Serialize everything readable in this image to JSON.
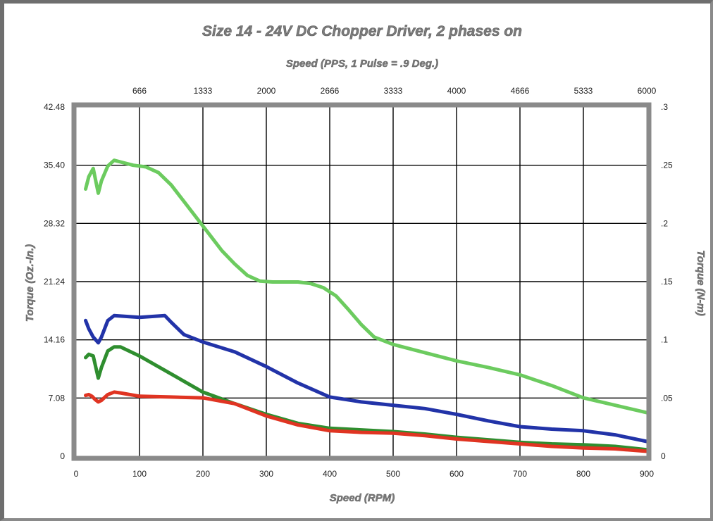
{
  "chart_data": {
    "type": "line",
    "title": "Size 14 - 24V DC Chopper Driver, 2 phases on",
    "top_axis_label": "Speed (PPS, 1 Pulse = .9 Deg.)",
    "xlabel": "Speed (RPM)",
    "ylabel_left": "Torque (Oz.-In.)",
    "ylabel_right": "Torque (N-m)",
    "xlim": [
      0,
      900
    ],
    "ylim_left": [
      0,
      42.48
    ],
    "ylim_right": [
      0,
      0.3
    ],
    "x_ticks": [
      "0",
      "100",
      "200",
      "300",
      "400",
      "500",
      "600",
      "700",
      "800",
      "900"
    ],
    "top_ticks": [
      "666",
      "1333",
      "2000",
      "2666",
      "3333",
      "4000",
      "4666",
      "5333",
      "6000"
    ],
    "left_ticks": [
      "0",
      "7.08",
      "14.16",
      "21.24",
      "28.32",
      "35.40",
      "42.48"
    ],
    "right_ticks": [
      "0",
      ".05",
      ".1",
      ".15",
      ".2",
      ".25",
      ".3"
    ],
    "grid": true,
    "colors": {
      "light_green": "#6ccb5f",
      "blue": "#2233a8",
      "dark_green": "#2f8e2f",
      "red": "#e03422",
      "grid": "#000000",
      "plot_border": "#8a8a8a",
      "text_gray": "#7c7c7c"
    },
    "series": [
      {
        "color": "#6ccb5f",
        "x": [
          15,
          20,
          27,
          35,
          40,
          50,
          60,
          70,
          90,
          110,
          130,
          150,
          170,
          190,
          210,
          230,
          250,
          270,
          290,
          310,
          330,
          350,
          370,
          390,
          410,
          430,
          450,
          470,
          500,
          550,
          600,
          650,
          700,
          750,
          800,
          850,
          900
        ],
        "y": [
          32.5,
          34.0,
          35.0,
          32.0,
          33.5,
          35.3,
          36.0,
          35.8,
          35.4,
          35.2,
          34.5,
          33.0,
          31.0,
          29.0,
          27.0,
          25.0,
          23.4,
          22.0,
          21.3,
          21.2,
          21.2,
          21.2,
          21.0,
          20.5,
          19.5,
          17.8,
          16.0,
          14.5,
          13.6,
          12.6,
          11.6,
          10.8,
          9.9,
          8.6,
          7.1,
          6.2,
          5.3
        ]
      },
      {
        "color": "#2233a8",
        "x": [
          15,
          20,
          27,
          35,
          40,
          50,
          60,
          80,
          100,
          120,
          140,
          150,
          170,
          200,
          250,
          300,
          350,
          400,
          450,
          500,
          550,
          600,
          650,
          700,
          750,
          800,
          850,
          900
        ],
        "y": [
          16.5,
          15.5,
          14.5,
          13.8,
          14.5,
          16.5,
          17.1,
          17.0,
          16.9,
          17.0,
          17.1,
          16.3,
          14.8,
          13.9,
          12.7,
          10.9,
          8.9,
          7.2,
          6.6,
          6.2,
          5.8,
          5.1,
          4.3,
          3.6,
          3.3,
          3.1,
          2.6,
          1.8
        ]
      },
      {
        "color": "#2f8e2f",
        "x": [
          15,
          20,
          27,
          35,
          40,
          50,
          60,
          70,
          100,
          150,
          200,
          250,
          300,
          350,
          400,
          450,
          500,
          550,
          600,
          650,
          700,
          750,
          800,
          850,
          900
        ],
        "y": [
          12.0,
          12.4,
          12.2,
          9.5,
          10.8,
          12.8,
          13.3,
          13.3,
          12.2,
          10.0,
          7.8,
          6.4,
          5.1,
          4.0,
          3.4,
          3.2,
          3.0,
          2.7,
          2.3,
          2.0,
          1.7,
          1.5,
          1.4,
          1.2,
          0.8
        ]
      },
      {
        "color": "#e03422",
        "x": [
          15,
          20,
          25,
          30,
          35,
          40,
          50,
          60,
          70,
          100,
          150,
          200,
          250,
          300,
          350,
          400,
          450,
          500,
          550,
          600,
          650,
          700,
          750,
          800,
          850,
          900
        ],
        "y": [
          7.4,
          7.5,
          7.3,
          6.9,
          6.6,
          6.8,
          7.5,
          7.8,
          7.7,
          7.3,
          7.2,
          7.1,
          6.4,
          4.9,
          3.8,
          3.1,
          2.9,
          2.8,
          2.5,
          2.1,
          1.8,
          1.5,
          1.2,
          1.0,
          0.9,
          0.6
        ]
      }
    ]
  }
}
